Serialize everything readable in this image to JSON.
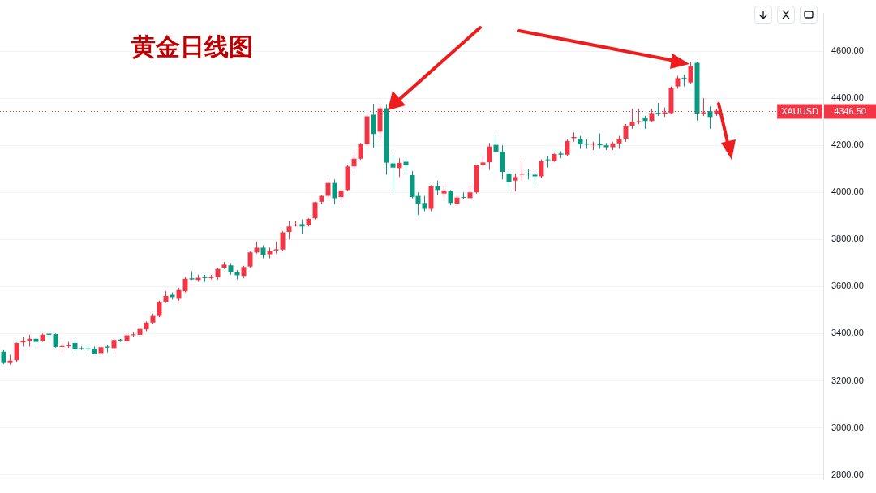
{
  "chart_data": {
    "type": "candlestick",
    "title": "黄金日线图",
    "categories": [
      null,
      null,
      null,
      null,
      null,
      null,
      null,
      null,
      null,
      null,
      null,
      null,
      null,
      null,
      null,
      null,
      null,
      null,
      null,
      null,
      null,
      null,
      null,
      null,
      null,
      null,
      null,
      null,
      null,
      null,
      null,
      null,
      null,
      null,
      null,
      null,
      null,
      null,
      null,
      null,
      null,
      null,
      null,
      null,
      null,
      null,
      null,
      null,
      null,
      null,
      null,
      null,
      null,
      null,
      null,
      null,
      null,
      null,
      null,
      null,
      null,
      null,
      null,
      null,
      null,
      null,
      null,
      null,
      null,
      null,
      null,
      null,
      null,
      null,
      null,
      null,
      null,
      null,
      null,
      null,
      null,
      null,
      null,
      null,
      null,
      null,
      null,
      null,
      null,
      null,
      null,
      null,
      null,
      null,
      null,
      null,
      null,
      null,
      null,
      null,
      null,
      null,
      null,
      null,
      null,
      null,
      null,
      null,
      null,
      null,
      null,
      null,
      null,
      null,
      null,
      null,
      null,
      null,
      null,
      null,
      null,
      null,
      null,
      null,
      null,
      null,
      null
    ],
    "ohlc": [
      [
        3323,
        3330,
        3270,
        3275
      ],
      [
        3275,
        3310,
        3268,
        3285
      ],
      [
        3287,
        3362,
        3280,
        3360
      ],
      [
        3363,
        3385,
        3345,
        3370
      ],
      [
        3370,
        3395,
        3345,
        3378
      ],
      [
        3378,
        3385,
        3355,
        3365
      ],
      [
        3370,
        3400,
        3365,
        3395
      ],
      [
        3400,
        3405,
        3375,
        3395
      ],
      [
        3398,
        3400,
        3340,
        3343
      ],
      [
        3343,
        3360,
        3320,
        3347
      ],
      [
        3346,
        3365,
        3340,
        3352
      ],
      [
        3360,
        3375,
        3325,
        3333
      ],
      [
        3338,
        3345,
        3330,
        3335
      ],
      [
        3337,
        3355,
        3325,
        3333
      ],
      [
        3335,
        3345,
        3312,
        3315
      ],
      [
        3317,
        3345,
        3312,
        3342
      ],
      [
        3345,
        3350,
        3320,
        3340
      ],
      [
        3338,
        3378,
        3325,
        3373
      ],
      [
        3375,
        3378,
        3365,
        3370
      ],
      [
        3368,
        3398,
        3360,
        3393
      ],
      [
        3393,
        3405,
        3385,
        3397
      ],
      [
        3395,
        3425,
        3390,
        3420
      ],
      [
        3418,
        3452,
        3410,
        3447
      ],
      [
        3447,
        3485,
        3440,
        3475
      ],
      [
        3475,
        3540,
        3470,
        3535
      ],
      [
        3535,
        3580,
        3530,
        3560
      ],
      [
        3565,
        3575,
        3545,
        3555
      ],
      [
        3548,
        3595,
        3540,
        3585
      ],
      [
        3580,
        3640,
        3575,
        3633
      ],
      [
        3635,
        3665,
        3628,
        3630
      ],
      [
        3628,
        3650,
        3620,
        3637
      ],
      [
        3640,
        3650,
        3620,
        3636
      ],
      [
        3636,
        3650,
        3630,
        3640
      ],
      [
        3640,
        3680,
        3630,
        3675
      ],
      [
        3680,
        3705,
        3675,
        3693
      ],
      [
        3690,
        3700,
        3650,
        3660
      ],
      [
        3660,
        3670,
        3630,
        3648
      ],
      [
        3645,
        3688,
        3635,
        3683
      ],
      [
        3685,
        3750,
        3680,
        3745
      ],
      [
        3745,
        3790,
        3740,
        3765
      ],
      [
        3765,
        3775,
        3720,
        3735
      ],
      [
        3737,
        3765,
        3720,
        3750
      ],
      [
        3753,
        3790,
        3740,
        3758
      ],
      [
        3757,
        3835,
        3750,
        3830
      ],
      [
        3832,
        3880,
        3800,
        3855
      ],
      [
        3860,
        3880,
        3855,
        3862
      ],
      [
        3865,
        3885,
        3825,
        3855
      ],
      [
        3860,
        3890,
        3855,
        3887
      ],
      [
        3890,
        3960,
        3885,
        3958
      ],
      [
        3960,
        3990,
        3950,
        3985
      ],
      [
        3985,
        4050,
        3980,
        4040
      ],
      [
        4040,
        4055,
        3950,
        3975
      ],
      [
        3980,
        4015,
        3960,
        4008
      ],
      [
        4010,
        4115,
        4005,
        4110
      ],
      [
        4110,
        4170,
        4095,
        4143
      ],
      [
        4143,
        4210,
        4138,
        4205
      ],
      [
        4205,
        4330,
        4195,
        4323
      ],
      [
        4330,
        4376,
        4189,
        4248
      ],
      [
        4258,
        4378,
        4225,
        4357
      ],
      [
        4357,
        4375,
        4075,
        4126
      ],
      [
        4123,
        4160,
        4008,
        4105
      ],
      [
        4103,
        4145,
        4065,
        4125
      ],
      [
        4130,
        4145,
        4080,
        4115
      ],
      [
        4073,
        4090,
        3975,
        3980
      ],
      [
        3985,
        4000,
        3905,
        3952
      ],
      [
        3955,
        3985,
        3920,
        3930
      ],
      [
        3930,
        4030,
        3920,
        4025
      ],
      [
        4025,
        4050,
        3990,
        4010
      ],
      [
        3995,
        4025,
        3978,
        4008
      ],
      [
        4005,
        4010,
        3945,
        3955
      ],
      [
        3952,
        3985,
        3945,
        3978
      ],
      [
        3980,
        4000,
        3970,
        3977
      ],
      [
        3975,
        4030,
        3970,
        4000
      ],
      [
        4000,
        4118,
        3995,
        4115
      ],
      [
        4117,
        4155,
        4100,
        4127
      ],
      [
        4128,
        4210,
        4095,
        4195
      ],
      [
        4202,
        4240,
        4160,
        4172
      ],
      [
        4172,
        4200,
        4055,
        4087
      ],
      [
        4080,
        4100,
        4010,
        4045
      ],
      [
        4050,
        4080,
        4005,
        4065
      ],
      [
        4075,
        4135,
        4050,
        4080
      ],
      [
        4080,
        4100,
        4055,
        4077
      ],
      [
        4075,
        4090,
        4035,
        4068
      ],
      [
        4068,
        4140,
        4060,
        4133
      ],
      [
        4140,
        4155,
        4105,
        4137
      ],
      [
        4133,
        4165,
        4130,
        4163
      ],
      [
        4165,
        4175,
        4145,
        4160
      ],
      [
        4160,
        4225,
        4155,
        4218
      ],
      [
        4230,
        4255,
        4215,
        4235
      ],
      [
        4228,
        4240,
        4185,
        4205
      ],
      [
        4207,
        4225,
        4185,
        4203
      ],
      [
        4203,
        4215,
        4180,
        4207
      ],
      [
        4207,
        4250,
        4185,
        4200
      ],
      [
        4200,
        4210,
        4180,
        4192
      ],
      [
        4192,
        4215,
        4180,
        4208
      ],
      [
        4208,
        4240,
        4185,
        4228
      ],
      [
        4228,
        4290,
        4215,
        4283
      ],
      [
        4283,
        4355,
        4270,
        4300
      ],
      [
        4298,
        4355,
        4290,
        4302
      ],
      [
        4318,
        4325,
        4270,
        4303
      ],
      [
        4303,
        4355,
        4298,
        4337
      ],
      [
        4338,
        4380,
        4325,
        4335
      ],
      [
        4335,
        4360,
        4320,
        4340
      ],
      [
        4337,
        4450,
        4333,
        4445
      ],
      [
        4450,
        4495,
        4440,
        4485
      ],
      [
        4487,
        4500,
        4450,
        4484
      ],
      [
        4467,
        4555,
        4460,
        4535
      ],
      [
        4550,
        4555,
        4305,
        4335
      ],
      [
        4335,
        4400,
        4325,
        4340
      ],
      [
        4345,
        4365,
        4270,
        4320
      ],
      [
        4333,
        4355,
        4325,
        4346.5
      ],
      null,
      null,
      null,
      null,
      null,
      null,
      null,
      null,
      null,
      null,
      null,
      null,
      null,
      null,
      null,
      null
    ],
    "colors": [
      "#089981",
      "#f23645",
      "#f23645",
      "#f23645",
      "#f23645",
      "#089981",
      "#f23645",
      "#089981",
      "#089981",
      "#f23645",
      "#f23645",
      "#089981",
      "#089981",
      "#089981",
      "#089981",
      "#f23645",
      "#089981",
      "#f23645",
      "#089981",
      "#f23645",
      "#f23645",
      "#f23645",
      "#f23645",
      "#f23645",
      "#f23645",
      "#f23645",
      "#089981",
      "#f23645",
      "#f23645",
      "#089981",
      "#f23645",
      "#089981",
      "#f23645",
      "#f23645",
      "#f23645",
      "#089981",
      "#089981",
      "#f23645",
      "#f23645",
      "#f23645",
      "#089981",
      "#f23645",
      "#f23645",
      "#f23645",
      "#f23645",
      "#f23645",
      "#089981",
      "#f23645",
      "#f23645",
      "#f23645",
      "#f23645",
      "#089981",
      "#f23645",
      "#f23645",
      "#f23645",
      "#f23645",
      "#f23645",
      "#089981",
      "#f23645",
      "#089981",
      "#089981",
      "#f23645",
      "#089981",
      "#089981",
      "#089981",
      "#089981",
      "#f23645",
      "#089981",
      "#f23645",
      "#089981",
      "#f23645",
      "#089981",
      "#f23645",
      "#f23645",
      "#f23645",
      "#f23645",
      "#089981",
      "#089981",
      "#089981",
      "#f23645",
      "#f23645",
      "#089981",
      "#089981",
      "#f23645",
      "#089981",
      "#f23645",
      "#089981",
      "#f23645",
      "#f23645",
      "#089981",
      "#089981",
      "#f23645",
      "#089981",
      "#089981",
      "#f23645",
      "#f23645",
      "#f23645",
      "#f23645",
      "#f23645",
      "#089981",
      "#f23645",
      "#089981",
      "#f23645",
      "#f23645",
      "#f23645",
      "#089981",
      "#f23645",
      "#089981",
      "#f23645",
      "#089981",
      "#f23645",
      null,
      null,
      null,
      null,
      null,
      null,
      null,
      null,
      null,
      null,
      null,
      null,
      null,
      null,
      null,
      null
    ],
    "ylim": [
      2780,
      4760
    ],
    "yticks": [
      {
        "value": 2800,
        "label": "2800.00"
      },
      {
        "value": 3000,
        "label": "3000.00"
      },
      {
        "value": 3200,
        "label": "3200.00"
      },
      {
        "value": 3400,
        "label": "3400.00"
      },
      {
        "value": 3600,
        "label": "3600.00"
      },
      {
        "value": 3800,
        "label": "3800.00"
      },
      {
        "value": 4000,
        "label": "4000.00"
      },
      {
        "value": 4200,
        "label": "4200.00"
      },
      {
        "value": 4400,
        "label": "4400.00"
      },
      {
        "value": 4600,
        "label": "4600.00"
      }
    ],
    "ref_lines": [
      {
        "axis": "y",
        "value": 4346.5,
        "label": "XAUUSD",
        "color": "#f23645",
        "line_style": "dotted"
      }
    ],
    "annotations": [
      "4346.50"
    ],
    "grid": "y",
    "tick_labels": "y"
  }
}
